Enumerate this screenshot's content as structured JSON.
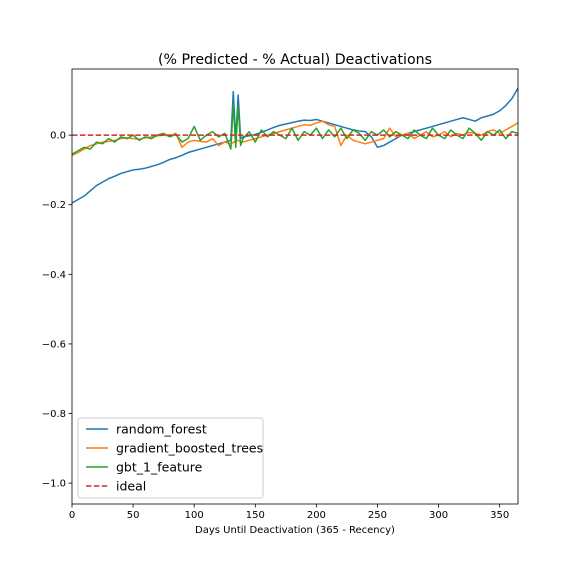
{
  "chart_data": {
    "type": "line",
    "title": "(% Predicted - % Actual) Deactivations",
    "xlabel": "Days Until Deactivation (365 - Recency)",
    "ylabel": "",
    "xlim": [
      0,
      365
    ],
    "ylim": [
      -1.06,
      0.19
    ],
    "x_ticks": [
      0,
      50,
      100,
      150,
      200,
      250,
      300,
      350
    ],
    "x_tick_labels": [
      "0",
      "50",
      "100",
      "150",
      "200",
      "250",
      "300",
      "350"
    ],
    "y_ticks": [
      -1.0,
      -0.8,
      -0.6,
      -0.4,
      -0.2,
      0.0
    ],
    "y_tick_labels": [
      "−1.0",
      "−0.8",
      "−0.6",
      "−0.4",
      "−0.2",
      "0.0"
    ],
    "grid": false,
    "legend_position": "lower-left",
    "series": [
      {
        "name": "random_forest",
        "color": "#1f77b4",
        "style": "solid",
        "x": [
          0,
          5,
          10,
          15,
          20,
          25,
          30,
          35,
          40,
          45,
          50,
          55,
          60,
          65,
          70,
          75,
          80,
          85,
          90,
          95,
          100,
          105,
          110,
          115,
          120,
          125,
          130,
          132,
          134,
          136,
          138,
          140,
          145,
          150,
          155,
          160,
          165,
          170,
          175,
          180,
          185,
          190,
          195,
          200,
          205,
          210,
          215,
          220,
          225,
          230,
          235,
          240,
          245,
          250,
          255,
          260,
          265,
          270,
          275,
          280,
          285,
          290,
          295,
          300,
          305,
          310,
          315,
          320,
          325,
          330,
          335,
          340,
          345,
          350,
          355,
          360,
          365
        ],
        "y": [
          -0.195,
          -0.185,
          -0.175,
          -0.16,
          -0.145,
          -0.135,
          -0.125,
          -0.118,
          -0.11,
          -0.105,
          -0.1,
          -0.098,
          -0.095,
          -0.09,
          -0.085,
          -0.078,
          -0.07,
          -0.065,
          -0.058,
          -0.05,
          -0.045,
          -0.04,
          -0.035,
          -0.03,
          -0.025,
          -0.02,
          -0.015,
          0.125,
          -0.012,
          0.115,
          -0.01,
          -0.005,
          -0.002,
          0.002,
          0.008,
          0.015,
          0.022,
          0.028,
          0.032,
          0.036,
          0.04,
          0.043,
          0.042,
          0.045,
          0.04,
          0.035,
          0.03,
          0.025,
          0.02,
          0.015,
          0.012,
          0.01,
          -0.005,
          -0.035,
          -0.03,
          -0.02,
          -0.01,
          0.0,
          0.005,
          0.01,
          0.015,
          0.02,
          0.025,
          0.03,
          0.035,
          0.04,
          0.045,
          0.05,
          0.045,
          0.04,
          0.05,
          0.055,
          0.06,
          0.07,
          0.085,
          0.105,
          0.135
        ]
      },
      {
        "name": "gradient_boosted_trees",
        "color": "#ff7f0e",
        "style": "solid",
        "x": [
          0,
          5,
          10,
          15,
          20,
          25,
          30,
          35,
          40,
          45,
          50,
          55,
          60,
          65,
          70,
          75,
          80,
          85,
          90,
          95,
          100,
          105,
          110,
          115,
          120,
          125,
          130,
          135,
          140,
          145,
          150,
          155,
          160,
          165,
          170,
          175,
          180,
          185,
          190,
          195,
          200,
          205,
          210,
          215,
          220,
          225,
          230,
          235,
          240,
          245,
          250,
          255,
          260,
          265,
          270,
          275,
          280,
          285,
          290,
          295,
          300,
          305,
          310,
          315,
          320,
          325,
          330,
          335,
          340,
          345,
          350,
          355,
          360,
          365
        ],
        "y": [
          -0.058,
          -0.05,
          -0.04,
          -0.03,
          -0.025,
          -0.02,
          -0.018,
          -0.015,
          -0.01,
          -0.008,
          -0.01,
          -0.012,
          -0.008,
          -0.005,
          -0.002,
          0.0,
          -0.002,
          0.005,
          -0.035,
          -0.02,
          -0.015,
          -0.018,
          -0.02,
          -0.01,
          -0.03,
          -0.02,
          -0.025,
          -0.015,
          -0.02,
          -0.015,
          -0.01,
          -0.005,
          0.0,
          0.005,
          0.01,
          0.015,
          0.02,
          0.025,
          0.03,
          0.028,
          0.035,
          0.04,
          0.03,
          0.025,
          -0.03,
          0.0,
          -0.015,
          -0.02,
          -0.025,
          -0.02,
          -0.015,
          -0.01,
          0.02,
          -0.005,
          0.0,
          0.005,
          -0.01,
          0.0,
          0.01,
          -0.005,
          0.0,
          0.01,
          -0.005,
          0.005,
          0.0,
          0.008,
          0.005,
          0.0,
          0.01,
          0.015,
          0.005,
          0.015,
          0.025,
          0.035
        ]
      },
      {
        "name": "gbt_1_feature",
        "color": "#2ca02c",
        "style": "solid",
        "x": [
          0,
          5,
          10,
          15,
          20,
          25,
          30,
          35,
          40,
          45,
          50,
          55,
          60,
          65,
          70,
          75,
          80,
          85,
          90,
          95,
          100,
          105,
          110,
          115,
          120,
          125,
          130,
          132,
          134,
          136,
          138,
          140,
          145,
          150,
          155,
          160,
          165,
          170,
          175,
          180,
          185,
          190,
          195,
          200,
          205,
          210,
          215,
          220,
          225,
          230,
          235,
          240,
          245,
          250,
          255,
          260,
          265,
          270,
          275,
          280,
          285,
          290,
          295,
          300,
          305,
          310,
          315,
          320,
          325,
          330,
          335,
          340,
          345,
          350,
          355,
          360,
          365
        ],
        "y": [
          -0.055,
          -0.045,
          -0.035,
          -0.04,
          -0.02,
          -0.025,
          -0.01,
          -0.02,
          -0.005,
          -0.01,
          0.0,
          -0.015,
          -0.005,
          -0.01,
          0.0,
          0.005,
          -0.005,
          0.002,
          -0.02,
          -0.01,
          0.025,
          -0.015,
          0.0,
          0.01,
          -0.005,
          0.005,
          -0.04,
          0.09,
          -0.035,
          0.085,
          -0.03,
          -0.01,
          0.01,
          -0.02,
          0.015,
          -0.005,
          0.01,
          0.0,
          -0.01,
          0.02,
          -0.015,
          0.01,
          0.0,
          0.02,
          -0.01,
          0.015,
          -0.005,
          0.02,
          -0.01,
          0.015,
          0.005,
          -0.015,
          0.01,
          0.0,
          0.015,
          -0.005,
          0.01,
          0.0,
          -0.01,
          0.015,
          0.0,
          -0.01,
          0.02,
          0.0,
          -0.01,
          0.015,
          0.0,
          -0.01,
          0.02,
          0.005,
          -0.015,
          0.01,
          0.0,
          0.015,
          -0.01,
          0.01,
          0.005
        ]
      },
      {
        "name": "ideal",
        "color": "#d62728",
        "style": "dashed",
        "x": [
          0,
          365
        ],
        "y": [
          0.0,
          0.0
        ]
      }
    ]
  }
}
